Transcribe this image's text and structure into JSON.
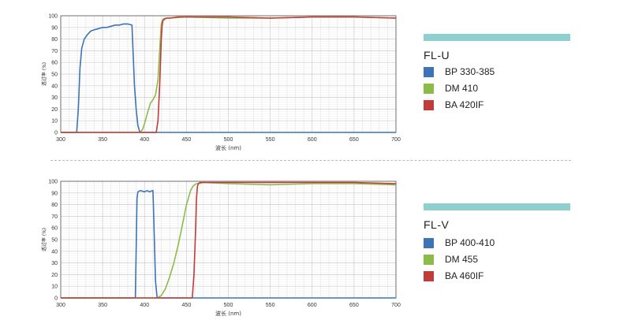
{
  "colors": {
    "blue": "#3c74b6",
    "green": "#8dbb4a",
    "red": "#c23a3a",
    "legend_bar": "#8fd0cf"
  },
  "chart_data": [
    {
      "type": "line",
      "title": "FL-U",
      "xlabel": "波长 (nm)",
      "ylabel": "透过率 (%)",
      "xlim": [
        300,
        700
      ],
      "ylim": [
        0,
        100
      ],
      "xticks": [
        300,
        350,
        400,
        450,
        500,
        550,
        600,
        650,
        700
      ],
      "yticks": [
        0,
        10,
        20,
        30,
        40,
        50,
        60,
        70,
        80,
        90,
        100
      ],
      "grid": true,
      "legend_position": "right",
      "series": [
        {
          "name": "BP 330-385",
          "color": "#3c74b6",
          "x": [
            300,
            319,
            321,
            323,
            325,
            328,
            332,
            336,
            340,
            345,
            350,
            355,
            360,
            365,
            370,
            375,
            380,
            385,
            388,
            390,
            392,
            394,
            396,
            700
          ],
          "y": [
            0,
            0,
            20,
            55,
            72,
            80,
            84,
            87,
            88,
            89,
            90,
            90,
            91,
            92,
            92,
            93,
            93,
            92,
            40,
            20,
            6,
            1,
            0,
            0
          ]
        },
        {
          "name": "DM 410",
          "color": "#8dbb4a",
          "x": [
            300,
            395,
            398,
            401,
            404,
            407,
            410,
            413,
            416,
            418,
            420,
            422,
            425,
            430,
            450,
            500,
            550,
            600,
            650,
            700
          ],
          "y": [
            0,
            0,
            3,
            10,
            18,
            25,
            28,
            32,
            45,
            70,
            93,
            97,
            98,
            98,
            99,
            98,
            98,
            99,
            99,
            98
          ]
        },
        {
          "name": "BA 420IF",
          "color": "#c23a3a",
          "x": [
            300,
            414,
            416,
            418,
            420,
            421,
            422,
            424,
            426,
            430,
            440,
            460,
            500,
            550,
            600,
            650,
            700
          ],
          "y": [
            0,
            0,
            10,
            40,
            80,
            92,
            96,
            97,
            98,
            98,
            99,
            99,
            99,
            98,
            99,
            99,
            98
          ]
        }
      ]
    },
    {
      "type": "line",
      "title": "FL-V",
      "xlabel": "波长 (nm)",
      "ylabel": "透过率 (%)",
      "xlim": [
        300,
        700
      ],
      "ylim": [
        0,
        100
      ],
      "xticks": [
        300,
        350,
        400,
        450,
        500,
        550,
        600,
        650,
        700
      ],
      "yticks": [
        0,
        10,
        20,
        30,
        40,
        50,
        60,
        70,
        80,
        90,
        100
      ],
      "grid": true,
      "legend_position": "right",
      "series": [
        {
          "name": "BP 400-410",
          "color": "#3c74b6",
          "x": [
            300,
            389,
            390,
            391,
            392,
            395,
            400,
            403,
            406,
            410,
            411,
            413,
            415,
            700
          ],
          "y": [
            0,
            0,
            40,
            85,
            91,
            92,
            91,
            92,
            91,
            92,
            70,
            15,
            0,
            0
          ]
        },
        {
          "name": "DM 455",
          "color": "#8dbb4a",
          "x": [
            300,
            415,
            420,
            425,
            430,
            435,
            440,
            445,
            450,
            455,
            458,
            460,
            462,
            465,
            470,
            500,
            550,
            600,
            650,
            700
          ],
          "y": [
            0,
            0,
            2,
            8,
            18,
            30,
            45,
            62,
            80,
            92,
            96,
            97,
            98,
            98,
            99,
            98,
            97,
            98,
            98,
            97
          ]
        },
        {
          "name": "BA 460IF",
          "color": "#c23a3a",
          "x": [
            300,
            457,
            459,
            461,
            462,
            463,
            464,
            466,
            470,
            500,
            550,
            600,
            650,
            700
          ],
          "y": [
            0,
            0,
            20,
            60,
            85,
            95,
            98,
            99,
            99,
            99,
            99,
            99,
            99,
            98
          ]
        }
      ]
    }
  ]
}
